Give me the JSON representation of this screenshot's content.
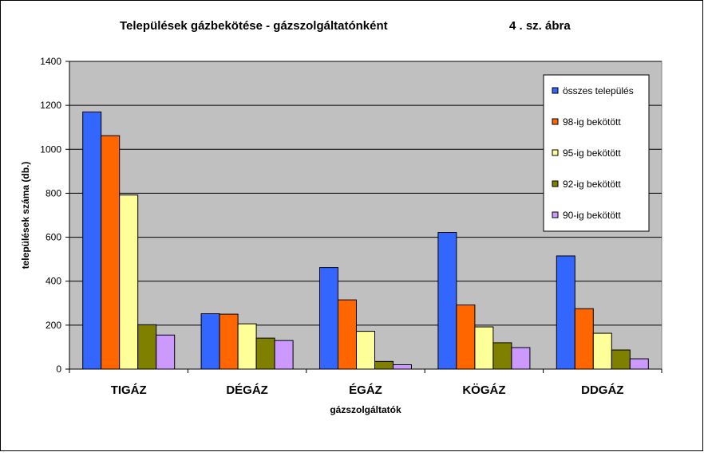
{
  "chart_data": {
    "type": "bar",
    "title": "Települések gázbekötése - gázszolgáltatónként",
    "figure_label": "4 . sz. ábra",
    "xlabel": "gázszolgáltatók",
    "ylabel": "települések száma (db.)",
    "categories": [
      "TIGÁZ",
      "DÉGÁZ",
      "ÉGÁZ",
      "KÖGÁZ",
      "DDGÁZ"
    ],
    "series": [
      {
        "name": "összes település",
        "color": "#3366FF",
        "values": [
          1170,
          252,
          462,
          622,
          515
        ]
      },
      {
        "name": "98-ig bekötött",
        "color": "#FF6600",
        "values": [
          1062,
          250,
          315,
          292,
          275
        ]
      },
      {
        "name": "95-ig bekötött",
        "color": "#FFFF99",
        "values": [
          792,
          206,
          172,
          192,
          163
        ]
      },
      {
        "name": "92-ig bekötött",
        "color": "#808000",
        "values": [
          202,
          141,
          35,
          120,
          87
        ]
      },
      {
        "name": "90-ig bekötött",
        "color": "#CC99FF",
        "values": [
          155,
          130,
          20,
          98,
          47
        ]
      }
    ],
    "ylim": [
      0,
      1400
    ],
    "yticks": [
      0,
      200,
      400,
      600,
      800,
      1000,
      1200,
      1400
    ],
    "grid": true,
    "legend_position": "top-right",
    "plot_background": "#C0C0C0"
  }
}
